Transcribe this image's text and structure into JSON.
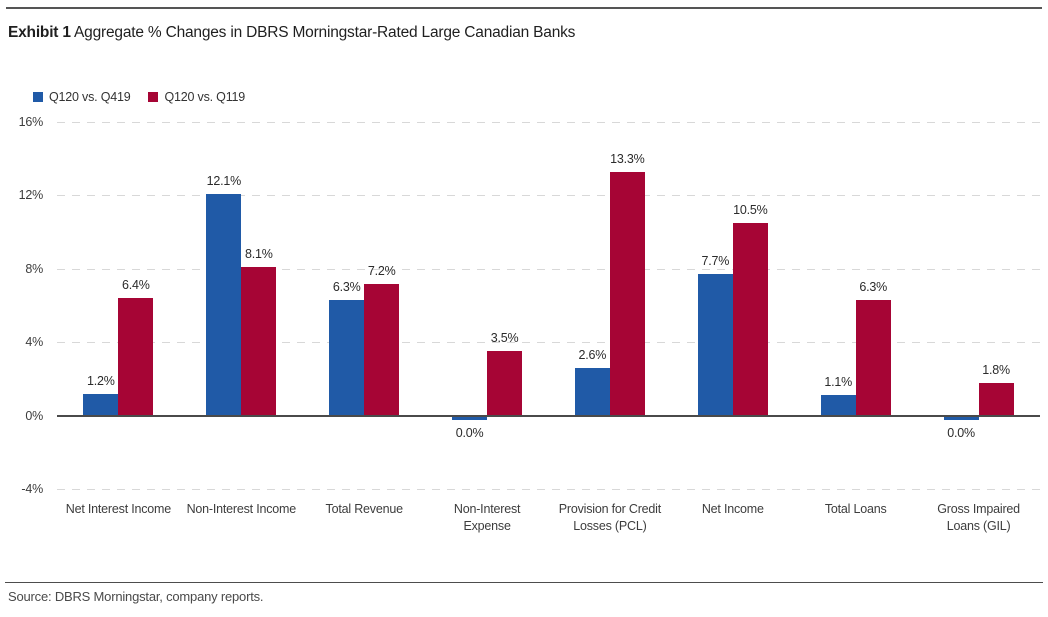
{
  "header": {
    "exhibit_label": "Exhibit 1",
    "title_rest": " Aggregate % Changes in DBRS Morningstar-Rated Large Canadian Banks"
  },
  "footer": {
    "source": "Source: DBRS Morningstar, company reports."
  },
  "colors": {
    "series1": "#205AA7",
    "series2": "#A60535",
    "axis": "#4a4a4a",
    "gridline": "#d8d8d8",
    "text": "#3d3d3d"
  },
  "chart_data": {
    "type": "bar",
    "title": "Exhibit 1 Aggregate % Changes in DBRS Morningstar-Rated Large Canadian Banks",
    "categories": [
      "Net Interest Income",
      "Non-Interest Income",
      "Total Revenue",
      "Non-Interest Expense",
      "Provision for Credit Losses (PCL)",
      "Net Income",
      "Total Loans",
      "Gross Impaired Loans (GIL)"
    ],
    "categories_lines": [
      [
        "Net Interest Income"
      ],
      [
        "Non-Interest Income"
      ],
      [
        "Total Revenue"
      ],
      [
        "Non-Interest",
        "Expense"
      ],
      [
        "Provision for Credit",
        "Losses (PCL)"
      ],
      [
        "Net Income"
      ],
      [
        "Total Loans"
      ],
      [
        "Gross Impaired",
        "Loans (GIL)"
      ]
    ],
    "series": [
      {
        "name": "Q120 vs. Q419",
        "color_key": "series1",
        "values": [
          1.2,
          12.1,
          6.3,
          0.0,
          2.6,
          7.7,
          1.1,
          0.0
        ],
        "labels": [
          "1.2%",
          "12.1%",
          "6.3%",
          "0.0%",
          "2.6%",
          "7.7%",
          "1.1%",
          "0.0%"
        ]
      },
      {
        "name": "Q120 vs. Q119",
        "color_key": "series2",
        "values": [
          6.4,
          8.1,
          7.2,
          3.5,
          13.3,
          10.5,
          6.3,
          1.8
        ],
        "labels": [
          "6.4%",
          "8.1%",
          "7.2%",
          "3.5%",
          "13.3%",
          "10.5%",
          "6.3%",
          "1.8%"
        ]
      }
    ],
    "xlabel": "",
    "ylabel": "",
    "ylim": [
      -4,
      16
    ],
    "yticks": [
      16,
      12,
      8,
      4,
      0,
      -4
    ],
    "ytick_labels": [
      "16%",
      "12%",
      "8%",
      "4%",
      "0%",
      "-4%"
    ],
    "grid": "dashed-horizontal",
    "legend_position": "top-left"
  }
}
